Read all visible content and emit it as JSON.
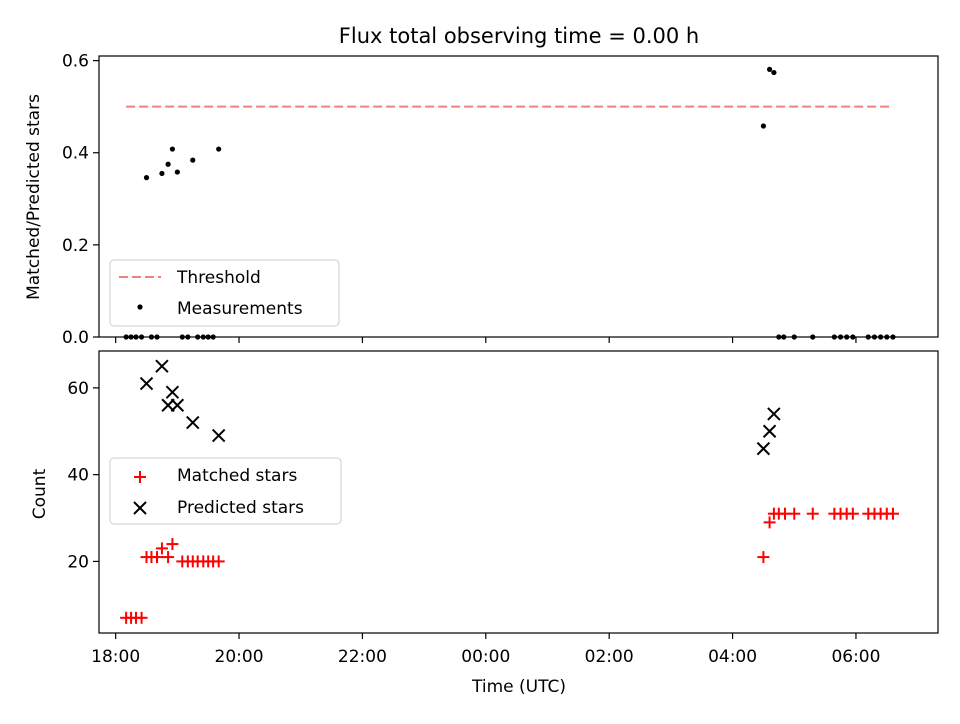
{
  "figure": {
    "title": "Flux total observing time = 0.00 h",
    "xlabel": "Time (UTC)",
    "xticks": [
      "18:00",
      "20:00",
      "22:00",
      "00:00",
      "02:00",
      "04:00",
      "06:00"
    ]
  },
  "chart_data": [
    {
      "type": "scatter",
      "ylabel": "Matched/Predicted stars",
      "ylim": [
        0,
        0.61
      ],
      "yticks": [
        "0.0",
        "0.2",
        "0.4",
        "0.6"
      ],
      "legend": {
        "placement": "lower-left",
        "entries": [
          "Threshold",
          "Measurements"
        ]
      },
      "threshold": {
        "name": "Threshold",
        "value": 0.5,
        "x_start": 18.17,
        "x_end": 30.6,
        "color": "#f08080"
      },
      "series": [
        {
          "name": "Measurements",
          "marker": "dot",
          "color": "#000000",
          "points": [
            [
              18.5,
              0.346
            ],
            [
              18.75,
              0.355
            ],
            [
              18.85,
              0.375
            ],
            [
              18.92,
              0.408
            ],
            [
              19.0,
              0.358
            ],
            [
              19.25,
              0.384
            ],
            [
              19.67,
              0.408
            ],
            [
              28.5,
              0.458
            ],
            [
              28.6,
              0.581
            ],
            [
              28.67,
              0.574
            ],
            [
              18.17,
              0.0
            ],
            [
              18.25,
              0.0
            ],
            [
              18.33,
              0.0
            ],
            [
              18.42,
              0.0
            ],
            [
              18.58,
              0.0
            ],
            [
              18.67,
              0.0
            ],
            [
              19.08,
              0.0
            ],
            [
              19.17,
              0.0
            ],
            [
              19.33,
              0.0
            ],
            [
              19.42,
              0.0
            ],
            [
              19.5,
              0.0
            ],
            [
              19.58,
              0.0
            ],
            [
              28.75,
              0.0
            ],
            [
              28.83,
              0.0
            ],
            [
              29.0,
              0.0
            ],
            [
              29.3,
              0.0
            ],
            [
              29.65,
              0.0
            ],
            [
              29.75,
              0.0
            ],
            [
              29.85,
              0.0
            ],
            [
              29.95,
              0.0
            ],
            [
              30.2,
              0.0
            ],
            [
              30.3,
              0.0
            ],
            [
              30.4,
              0.0
            ],
            [
              30.5,
              0.0
            ],
            [
              30.6,
              0.0
            ]
          ]
        }
      ]
    },
    {
      "type": "scatter",
      "ylabel": "Count",
      "ylim": [
        3.5,
        68.5
      ],
      "yticks": [
        "20",
        "40",
        "60"
      ],
      "legend": {
        "placement": "center-left",
        "entries": [
          "Matched stars",
          "Predicted stars"
        ]
      },
      "series": [
        {
          "name": "Matched stars",
          "marker": "plus",
          "color": "#ff0000",
          "points": [
            [
              18.17,
              7
            ],
            [
              18.25,
              7
            ],
            [
              18.33,
              7
            ],
            [
              18.42,
              7
            ],
            [
              18.5,
              21
            ],
            [
              18.58,
              21
            ],
            [
              18.67,
              21
            ],
            [
              18.75,
              23
            ],
            [
              18.85,
              21
            ],
            [
              18.92,
              24
            ],
            [
              19.08,
              20
            ],
            [
              19.17,
              20
            ],
            [
              19.25,
              20
            ],
            [
              19.33,
              20
            ],
            [
              19.42,
              20
            ],
            [
              19.5,
              20
            ],
            [
              19.58,
              20
            ],
            [
              19.67,
              20
            ],
            [
              28.5,
              21
            ],
            [
              28.6,
              29
            ],
            [
              28.67,
              31
            ],
            [
              28.75,
              31
            ],
            [
              28.85,
              31
            ],
            [
              29.0,
              31
            ],
            [
              29.3,
              31
            ],
            [
              29.65,
              31
            ],
            [
              29.75,
              31
            ],
            [
              29.85,
              31
            ],
            [
              29.95,
              31
            ],
            [
              30.2,
              31
            ],
            [
              30.3,
              31
            ],
            [
              30.4,
              31
            ],
            [
              30.5,
              31
            ],
            [
              30.6,
              31
            ]
          ]
        },
        {
          "name": "Predicted stars",
          "marker": "x",
          "color": "#000000",
          "points": [
            [
              18.5,
              61
            ],
            [
              18.75,
              65
            ],
            [
              18.85,
              56
            ],
            [
              18.92,
              59
            ],
            [
              19.0,
              56
            ],
            [
              19.25,
              52
            ],
            [
              19.67,
              49
            ],
            [
              28.5,
              46
            ],
            [
              28.6,
              50
            ],
            [
              28.67,
              54
            ]
          ]
        }
      ]
    }
  ]
}
